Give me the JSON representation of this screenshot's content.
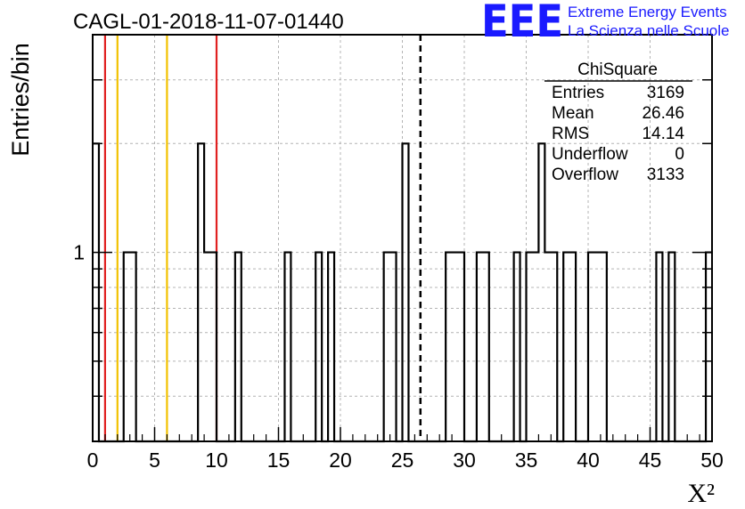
{
  "title": "CAGL-01-2018-11-07-01440",
  "logo": {
    "mark": "EEE",
    "line1": "Extreme Energy Events",
    "line2": "La Scienza nelle Scuole",
    "color": "#1a1aff"
  },
  "stats": {
    "name": "ChiSquare",
    "rows": [
      {
        "label": "Entries",
        "value": "3169"
      },
      {
        "label": "Mean",
        "value": "26.46"
      },
      {
        "label": "RMS",
        "value": "14.14"
      },
      {
        "label": "Underflow",
        "value": "0"
      },
      {
        "label": "Overflow",
        "value": "3133"
      }
    ]
  },
  "chart_data": {
    "type": "bar",
    "histogram": true,
    "xlabel": "X²",
    "ylabel": "Entries/bin",
    "xlim": [
      0,
      50
    ],
    "ylim_log": [
      0.3,
      4
    ],
    "log_y": true,
    "grid": true,
    "x_ticks": [
      0,
      5,
      10,
      15,
      20,
      25,
      30,
      35,
      40,
      45,
      50
    ],
    "y_tick_labels": [
      {
        "value": 1,
        "label": "1"
      }
    ],
    "bin_width": 0.5,
    "bins": [
      {
        "x": 0.0,
        "count": 2
      },
      {
        "x": 2.5,
        "count": 1
      },
      {
        "x": 3.0,
        "count": 1
      },
      {
        "x": 5.5,
        "count": 0
      },
      {
        "x": 8.5,
        "count": 2
      },
      {
        "x": 9.0,
        "count": 1
      },
      {
        "x": 9.5,
        "count": 1
      },
      {
        "x": 11.5,
        "count": 1
      },
      {
        "x": 15.5,
        "count": 1
      },
      {
        "x": 18.0,
        "count": 1
      },
      {
        "x": 19.0,
        "count": 1
      },
      {
        "x": 23.5,
        "count": 1
      },
      {
        "x": 24.0,
        "count": 1
      },
      {
        "x": 25.0,
        "count": 2
      },
      {
        "x": 28.5,
        "count": 1
      },
      {
        "x": 29.0,
        "count": 1
      },
      {
        "x": 29.5,
        "count": 1
      },
      {
        "x": 31.0,
        "count": 1
      },
      {
        "x": 31.5,
        "count": 1
      },
      {
        "x": 34.0,
        "count": 1
      },
      {
        "x": 35.0,
        "count": 1
      },
      {
        "x": 35.5,
        "count": 1
      },
      {
        "x": 36.0,
        "count": 2
      },
      {
        "x": 36.5,
        "count": 1
      },
      {
        "x": 37.0,
        "count": 1
      },
      {
        "x": 38.0,
        "count": 1
      },
      {
        "x": 38.5,
        "count": 1
      },
      {
        "x": 40.0,
        "count": 1
      },
      {
        "x": 40.5,
        "count": 1
      },
      {
        "x": 41.0,
        "count": 1
      },
      {
        "x": 45.5,
        "count": 1
      },
      {
        "x": 46.5,
        "count": 1
      },
      {
        "x": 49.5,
        "count": 1
      }
    ],
    "vertical_lines": [
      {
        "x": 1,
        "color": "#e02020"
      },
      {
        "x": 2,
        "color": "#f2c200"
      },
      {
        "x": 6,
        "color": "#f2c200"
      },
      {
        "x": 10,
        "color": "#e02020"
      },
      {
        "x": 26.46,
        "color": "#000000",
        "dashed": true
      }
    ]
  }
}
